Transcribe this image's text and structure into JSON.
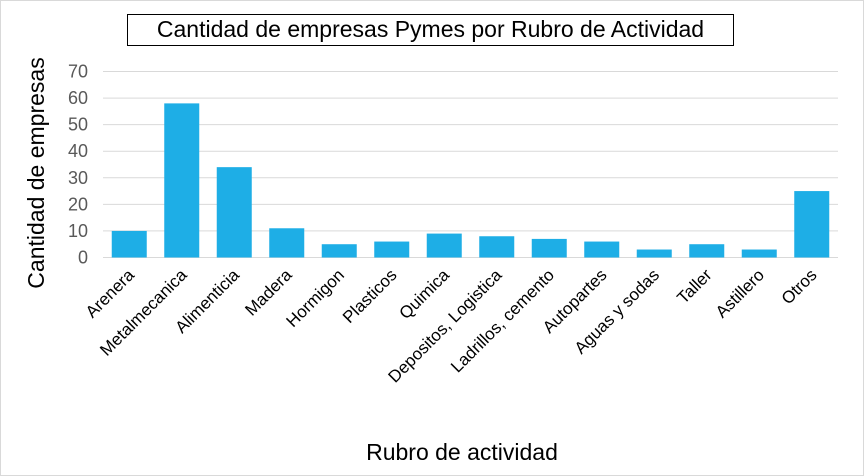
{
  "chart_data": {
    "type": "bar",
    "title": "Cantidad de empresas Pymes por Rubro de Actividad",
    "xlabel": "Rubro de actividad",
    "ylabel": "Cantidad de empresas",
    "categories": [
      "Arenera",
      "Metalmecanica",
      "Alimenticia",
      "Madera",
      "Hormigon",
      "Plasticos",
      "Quimica",
      "Depositos, Logistica",
      "Ladrillos, cemento",
      "Autopartes",
      "Aguas y sodas",
      "Taller",
      "Astillero",
      "Otros"
    ],
    "values": [
      10,
      58,
      34,
      11,
      5,
      6,
      9,
      8,
      7,
      6,
      3,
      5,
      3,
      25
    ],
    "ylim": [
      0,
      70
    ],
    "yticks": [
      0,
      10,
      20,
      30,
      40,
      50,
      60,
      70
    ],
    "grid": true,
    "legend": "none",
    "colors": {
      "bar": "#1eaee6",
      "grid": "#d9d9d9",
      "tick_text": "#595959"
    }
  }
}
